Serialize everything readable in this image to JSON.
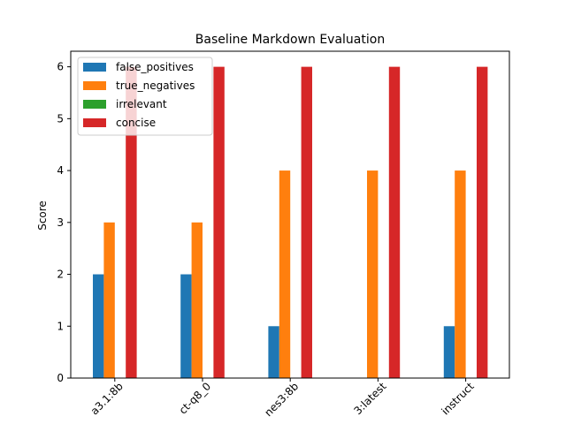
{
  "chart_data": {
    "type": "bar",
    "title": "Baseline Markdown Evaluation",
    "xlabel": "",
    "ylabel": "Score",
    "ylim": [
      0,
      6.3
    ],
    "yticks": [
      0,
      1,
      2,
      3,
      4,
      5,
      6
    ],
    "grid": false,
    "legend_position": "top-left",
    "categories": [
      "a3.1:8b",
      "ct-q8_0",
      "nes3:8b",
      "3:latest",
      "instruct"
    ],
    "series": [
      {
        "name": "false_positives",
        "color": "#1f77b4",
        "values": [
          2,
          2,
          1,
          0,
          1
        ]
      },
      {
        "name": "true_negatives",
        "color": "#ff7f0e",
        "values": [
          3,
          3,
          4,
          4,
          4
        ]
      },
      {
        "name": "irrelevant",
        "color": "#2ca02c",
        "values": [
          0,
          0,
          0,
          0,
          0
        ]
      },
      {
        "name": "concise",
        "color": "#d62728",
        "values": [
          6,
          6,
          6,
          6,
          6
        ]
      }
    ]
  }
}
